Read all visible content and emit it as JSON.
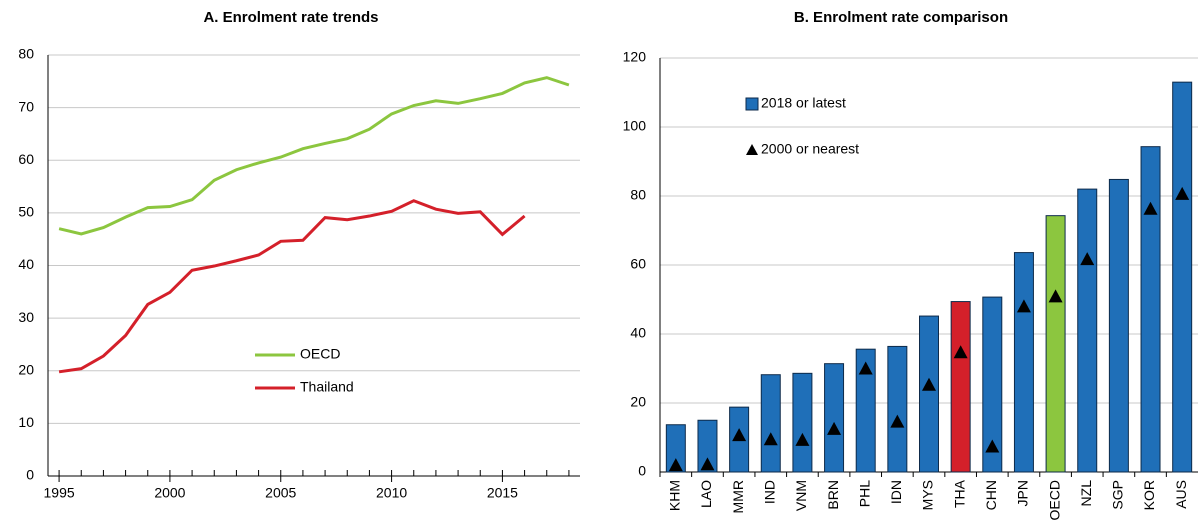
{
  "chart_data": [
    {
      "type": "line",
      "title": "A. Enrolment rate trends",
      "x": [
        1995,
        1996,
        1997,
        1998,
        1999,
        2000,
        2001,
        2002,
        2003,
        2004,
        2005,
        2006,
        2007,
        2008,
        2009,
        2010,
        2011,
        2012,
        2013,
        2014,
        2015,
        2016,
        2017,
        2018
      ],
      "series": [
        {
          "name": "OECD",
          "color": "#8cc63f",
          "values": [
            47,
            46,
            47.2,
            49.2,
            51,
            51.2,
            52.5,
            56.2,
            58.2,
            59.5,
            60.6,
            62.2,
            63.2,
            64.1,
            65.9,
            68.8,
            70.4,
            71.3,
            70.8,
            71.7,
            72.7,
            74.7,
            75.7,
            74.3
          ]
        },
        {
          "name": "Thailand",
          "color": "#d4202a",
          "values": [
            19.8,
            20.4,
            22.8,
            26.7,
            32.6,
            34.9,
            39.1,
            39.9,
            40.9,
            42,
            44.6,
            44.8,
            49.1,
            48.7,
            49.4,
            50.3,
            52.3,
            50.7,
            49.9,
            50.2,
            45.9,
            49.4,
            null,
            null
          ]
        }
      ],
      "xlim": [
        1994.5,
        2018.5
      ],
      "xticks": [
        1995,
        2000,
        2005,
        2010,
        2015
      ],
      "ylim": [
        0,
        80
      ],
      "yticks": [
        0,
        10,
        20,
        30,
        40,
        50,
        60,
        70,
        80
      ],
      "grid": true,
      "legend": "bottom"
    },
    {
      "type": "bar",
      "title": "B. Enrolment rate comparison",
      "categories": [
        "KHM",
        "LAO",
        "MMR",
        "IND",
        "VNM",
        "BRN",
        "PHL",
        "IDN",
        "MYS",
        "THA",
        "CHN",
        "JPN",
        "OECD",
        "NZL",
        "SGP",
        "KOR",
        "AUS"
      ],
      "series": [
        {
          "name": "2018 or latest",
          "color": "#1f6fb8",
          "colors": [
            "#1f6fb8",
            "#1f6fb8",
            "#1f6fb8",
            "#1f6fb8",
            "#1f6fb8",
            "#1f6fb8",
            "#1f6fb8",
            "#1f6fb8",
            "#1f6fb8",
            "#d4202a",
            "#1f6fb8",
            "#1f6fb8",
            "#8cc63f",
            "#1f6fb8",
            "#1f6fb8",
            "#1f6fb8",
            "#1f6fb8"
          ],
          "values": [
            13.7,
            15,
            18.8,
            28.2,
            28.6,
            31.4,
            35.6,
            36.4,
            45.2,
            49.4,
            50.7,
            63.6,
            74.3,
            82,
            84.8,
            94.3,
            113
          ]
        },
        {
          "name": "2000 or nearest",
          "color": "#000000",
          "marker": "triangle",
          "values": [
            2,
            2.2,
            10.7,
            9.5,
            9.3,
            12.5,
            30,
            14.6,
            25.3,
            34.7,
            7.4,
            48,
            50.9,
            61.7,
            null,
            76.3,
            80.6
          ]
        }
      ],
      "ylim": [
        0,
        120
      ],
      "yticks": [
        0,
        20,
        40,
        60,
        80,
        100,
        120
      ],
      "grid": true,
      "legend": "top-left"
    }
  ]
}
